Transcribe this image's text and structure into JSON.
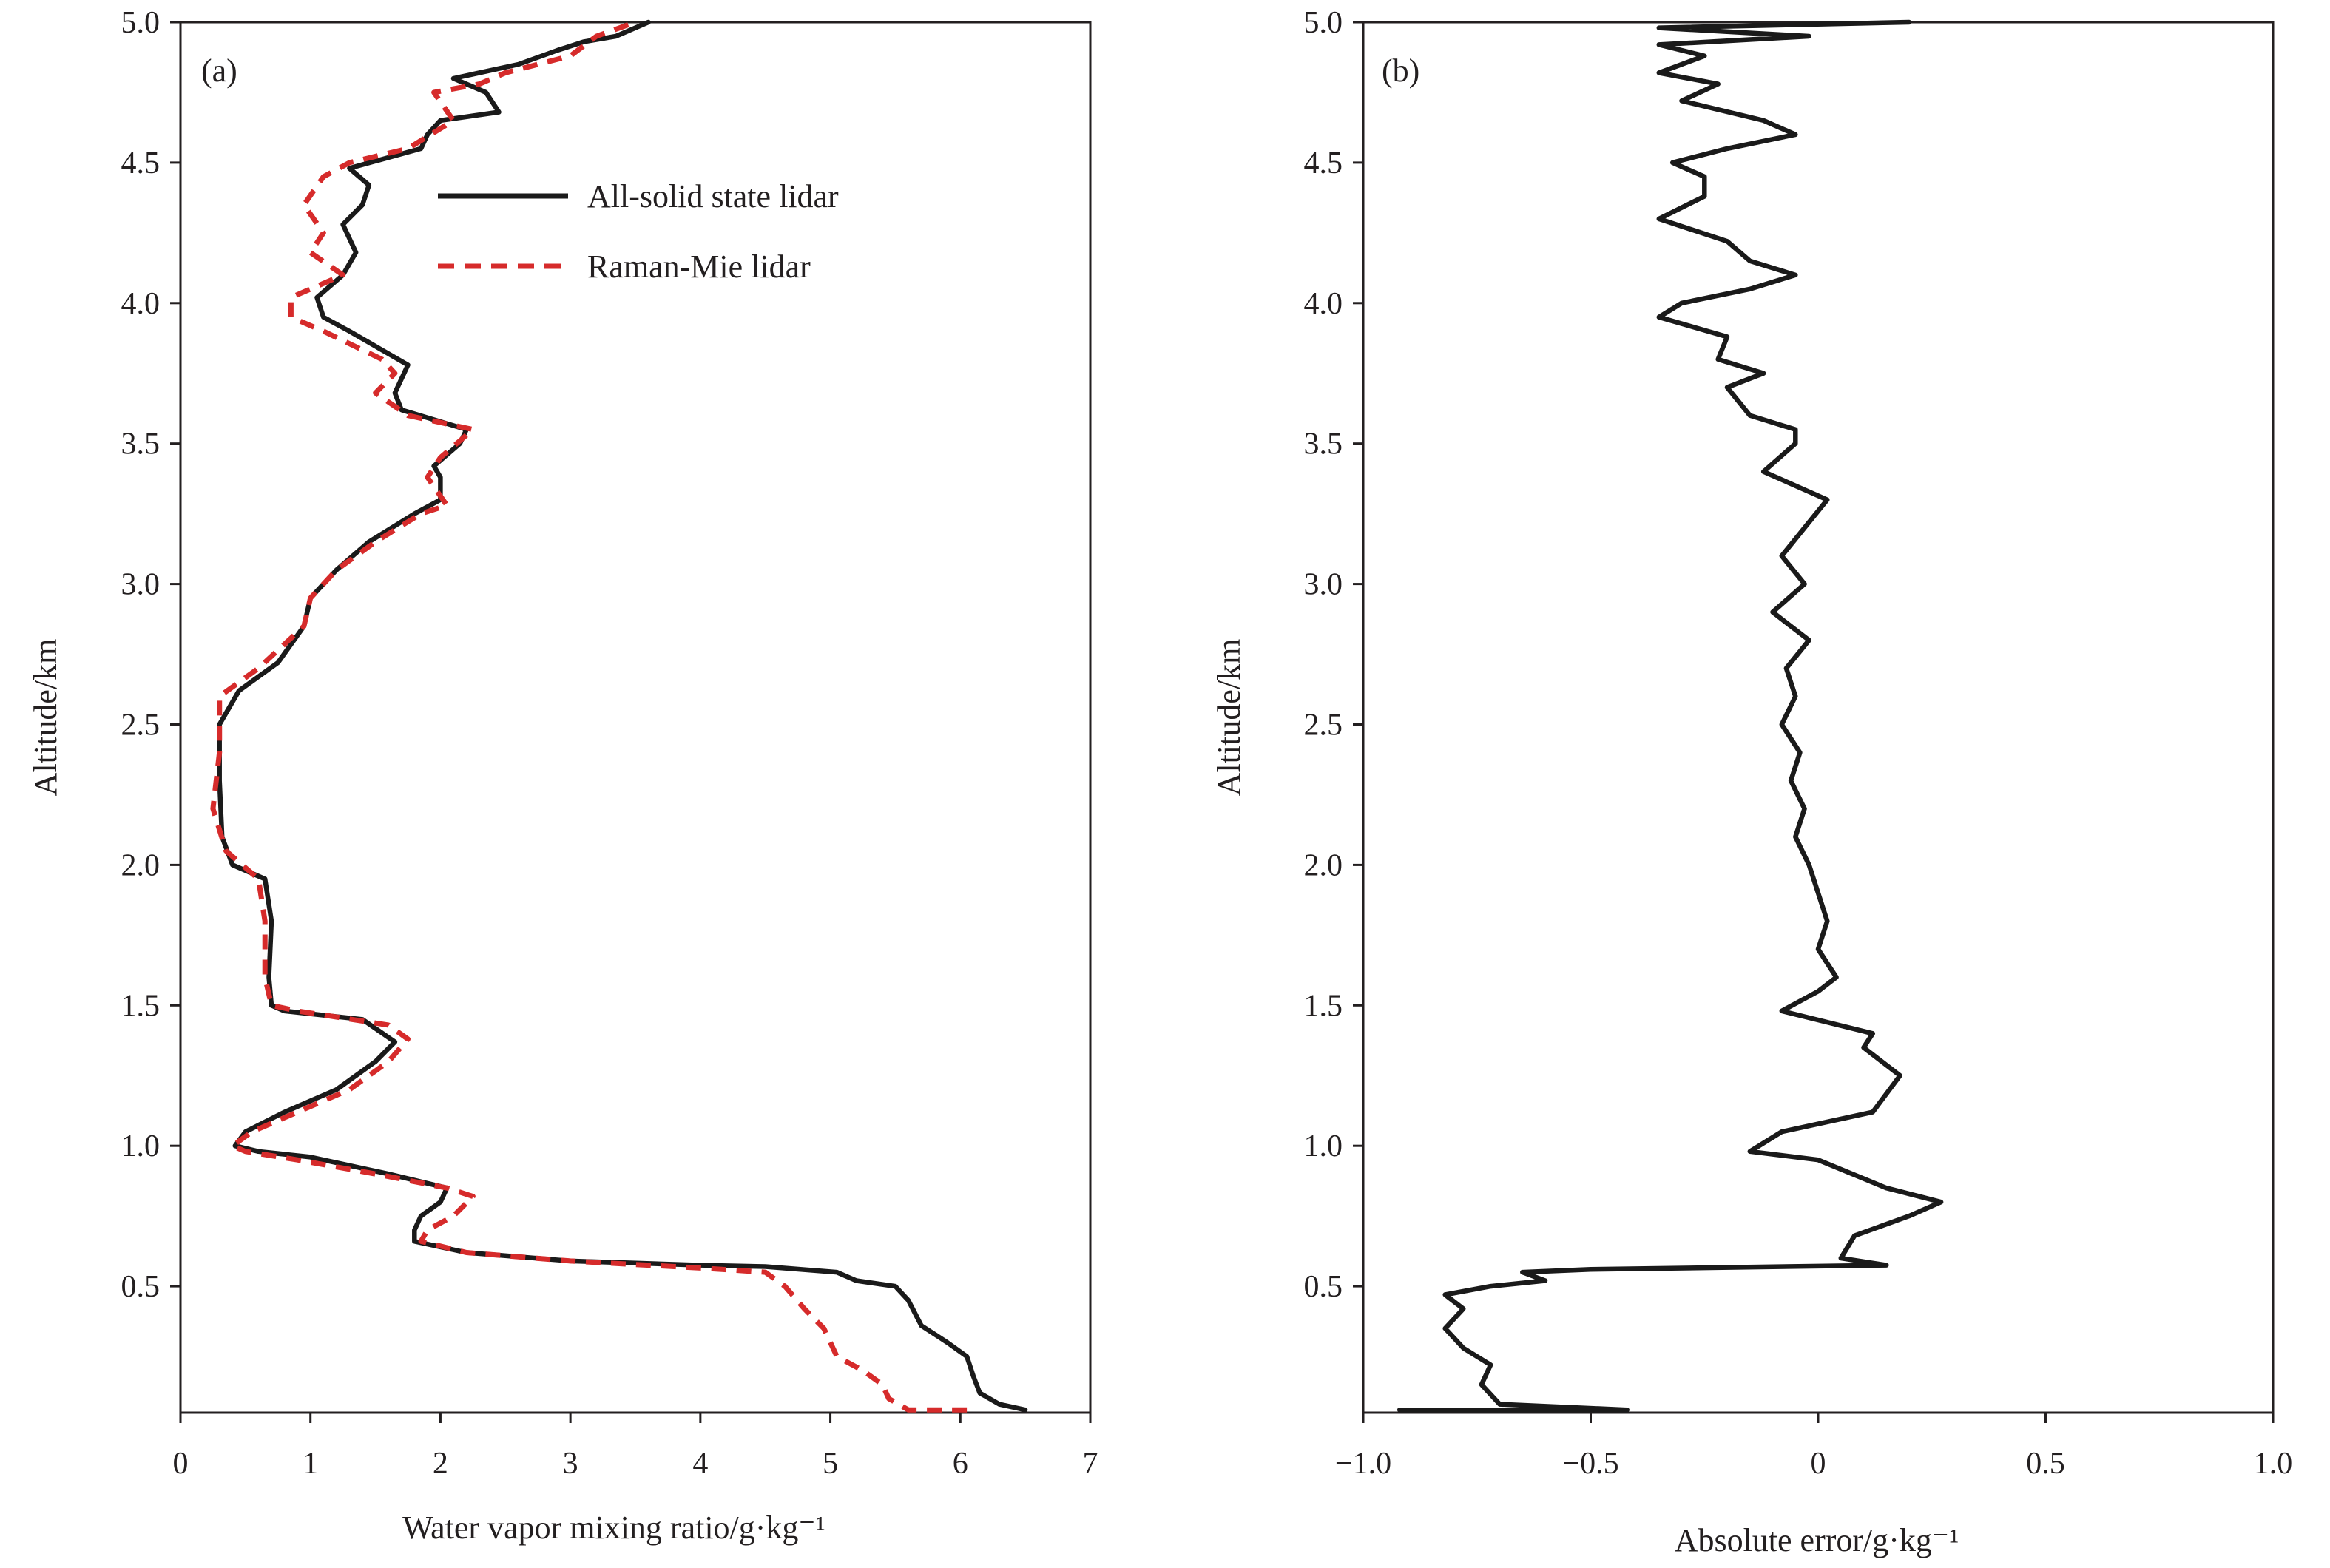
{
  "chart_data": [
    {
      "type": "line",
      "panel_label": "(a)",
      "xlabel": "Water vapor mixing ratio/g·kg⁻¹",
      "ylabel": "Altitude/km",
      "xlim": [
        0,
        7
      ],
      "ylim": [
        0.05,
        5.0
      ],
      "xticks": [
        0,
        1,
        2,
        3,
        4,
        5,
        6,
        7
      ],
      "xtick_labels": [
        "0",
        "1",
        "2",
        "3",
        "4",
        "5",
        "6",
        "7"
      ],
      "yticks": [
        0.5,
        1.0,
        1.5,
        2.0,
        2.5,
        3.0,
        3.5,
        4.0,
        4.5,
        5.0
      ],
      "ytick_labels": [
        "0.5",
        "1.0",
        "1.5",
        "2.0",
        "2.5",
        "3.0",
        "3.5",
        "4.0",
        "4.5",
        "5.0"
      ],
      "grid": false,
      "legend_position": "upper-center",
      "series": [
        {
          "name": "All-solid state lidar",
          "color": "#1a1a1a",
          "style": "solid",
          "points": [
            [
              6.5,
              0.06
            ],
            [
              6.3,
              0.08
            ],
            [
              6.15,
              0.12
            ],
            [
              6.1,
              0.18
            ],
            [
              6.05,
              0.25
            ],
            [
              5.9,
              0.3
            ],
            [
              5.7,
              0.36
            ],
            [
              5.6,
              0.45
            ],
            [
              5.5,
              0.5
            ],
            [
              5.2,
              0.52
            ],
            [
              5.05,
              0.55
            ],
            [
              4.5,
              0.57
            ],
            [
              4.0,
              0.575
            ],
            [
              3.0,
              0.59
            ],
            [
              2.2,
              0.62
            ],
            [
              1.8,
              0.66
            ],
            [
              1.8,
              0.7
            ],
            [
              1.85,
              0.75
            ],
            [
              2.0,
              0.8
            ],
            [
              2.05,
              0.85
            ],
            [
              1.6,
              0.9
            ],
            [
              1.0,
              0.96
            ],
            [
              0.6,
              0.98
            ],
            [
              0.42,
              1.0
            ],
            [
              0.5,
              1.05
            ],
            [
              0.8,
              1.12
            ],
            [
              1.2,
              1.2
            ],
            [
              1.5,
              1.3
            ],
            [
              1.65,
              1.37
            ],
            [
              1.4,
              1.45
            ],
            [
              0.8,
              1.48
            ],
            [
              0.7,
              1.5
            ],
            [
              0.68,
              1.6
            ],
            [
              0.7,
              1.8
            ],
            [
              0.65,
              1.95
            ],
            [
              0.4,
              2.0
            ],
            [
              0.32,
              2.1
            ],
            [
              0.3,
              2.3
            ],
            [
              0.3,
              2.5
            ],
            [
              0.45,
              2.62
            ],
            [
              0.75,
              2.72
            ],
            [
              0.95,
              2.85
            ],
            [
              1.0,
              2.95
            ],
            [
              1.2,
              3.05
            ],
            [
              1.45,
              3.15
            ],
            [
              1.8,
              3.25
            ],
            [
              2.0,
              3.3
            ],
            [
              2.0,
              3.38
            ],
            [
              1.95,
              3.42
            ],
            [
              2.15,
              3.5
            ],
            [
              2.2,
              3.55
            ],
            [
              1.7,
              3.62
            ],
            [
              1.65,
              3.68
            ],
            [
              1.75,
              3.78
            ],
            [
              1.6,
              3.82
            ],
            [
              1.3,
              3.9
            ],
            [
              1.1,
              3.95
            ],
            [
              1.05,
              4.02
            ],
            [
              1.25,
              4.1
            ],
            [
              1.35,
              4.18
            ],
            [
              1.25,
              4.28
            ],
            [
              1.4,
              4.35
            ],
            [
              1.45,
              4.42
            ],
            [
              1.3,
              4.48
            ],
            [
              1.85,
              4.55
            ],
            [
              1.9,
              4.6
            ],
            [
              2.0,
              4.65
            ],
            [
              2.45,
              4.68
            ],
            [
              2.35,
              4.75
            ],
            [
              2.1,
              4.8
            ],
            [
              2.6,
              4.85
            ],
            [
              2.9,
              4.9
            ],
            [
              3.1,
              4.93
            ],
            [
              3.35,
              4.95
            ],
            [
              3.6,
              5.0
            ]
          ]
        },
        {
          "name": "Raman-Mie lidar",
          "color": "#d62b2b",
          "style": "dashed",
          "points": [
            [
              6.05,
              0.06
            ],
            [
              5.6,
              0.06
            ],
            [
              5.45,
              0.1
            ],
            [
              5.4,
              0.15
            ],
            [
              5.25,
              0.2
            ],
            [
              5.05,
              0.25
            ],
            [
              5.0,
              0.3
            ],
            [
              4.95,
              0.35
            ],
            [
              4.8,
              0.42
            ],
            [
              4.65,
              0.5
            ],
            [
              4.5,
              0.55
            ],
            [
              4.0,
              0.565
            ],
            [
              3.0,
              0.59
            ],
            [
              2.2,
              0.62
            ],
            [
              1.85,
              0.66
            ],
            [
              1.9,
              0.7
            ],
            [
              2.1,
              0.75
            ],
            [
              2.25,
              0.82
            ],
            [
              2.05,
              0.85
            ],
            [
              1.5,
              0.9
            ],
            [
              0.9,
              0.95
            ],
            [
              0.5,
              0.98
            ],
            [
              0.4,
              1.0
            ],
            [
              0.55,
              1.05
            ],
            [
              0.9,
              1.12
            ],
            [
              1.3,
              1.2
            ],
            [
              1.6,
              1.3
            ],
            [
              1.75,
              1.38
            ],
            [
              1.6,
              1.43
            ],
            [
              0.9,
              1.48
            ],
            [
              0.7,
              1.5
            ],
            [
              0.65,
              1.6
            ],
            [
              0.65,
              1.8
            ],
            [
              0.6,
              1.95
            ],
            [
              0.35,
              2.05
            ],
            [
              0.25,
              2.2
            ],
            [
              0.3,
              2.4
            ],
            [
              0.3,
              2.6
            ],
            [
              0.6,
              2.7
            ],
            [
              0.95,
              2.85
            ],
            [
              1.0,
              2.95
            ],
            [
              1.2,
              3.05
            ],
            [
              1.5,
              3.15
            ],
            [
              1.85,
              3.25
            ],
            [
              2.05,
              3.28
            ],
            [
              1.9,
              3.38
            ],
            [
              2.0,
              3.45
            ],
            [
              2.25,
              3.55
            ],
            [
              1.75,
              3.6
            ],
            [
              1.5,
              3.68
            ],
            [
              1.65,
              3.75
            ],
            [
              1.55,
              3.8
            ],
            [
              1.1,
              3.9
            ],
            [
              0.85,
              3.95
            ],
            [
              0.85,
              4.02
            ],
            [
              1.0,
              4.05
            ],
            [
              1.25,
              4.1
            ],
            [
              1.0,
              4.18
            ],
            [
              1.1,
              4.25
            ],
            [
              0.95,
              4.35
            ],
            [
              1.1,
              4.45
            ],
            [
              1.3,
              4.5
            ],
            [
              1.75,
              4.55
            ],
            [
              2.1,
              4.65
            ],
            [
              1.95,
              4.75
            ],
            [
              2.3,
              4.78
            ],
            [
              2.5,
              4.82
            ],
            [
              3.0,
              4.88
            ],
            [
              3.2,
              4.95
            ],
            [
              3.5,
              5.0
            ]
          ]
        }
      ]
    },
    {
      "type": "line",
      "panel_label": "(b)",
      "xlabel": "Absolute error/g·kg⁻¹",
      "ylabel": "Altitude/km",
      "xlim": [
        -1.0,
        1.0
      ],
      "ylim": [
        0.05,
        5.0
      ],
      "xticks": [
        -1.0,
        -0.5,
        0,
        0.5,
        1.0
      ],
      "xtick_labels": [
        "−1.0",
        "−0.5",
        "0",
        "0.5",
        "1.0"
      ],
      "yticks": [
        0.5,
        1.0,
        1.5,
        2.0,
        2.5,
        3.0,
        3.5,
        4.0,
        4.5,
        5.0
      ],
      "ytick_labels": [
        "0.5",
        "1.0",
        "1.5",
        "2.0",
        "2.5",
        "3.0",
        "3.5",
        "4.0",
        "4.5",
        "5.0"
      ],
      "grid": false,
      "series": [
        {
          "color": "#1a1a1a",
          "style": "solid",
          "points": [
            [
              -0.92,
              0.06
            ],
            [
              -0.42,
              0.06
            ],
            [
              -0.7,
              0.08
            ],
            [
              -0.74,
              0.15
            ],
            [
              -0.72,
              0.22
            ],
            [
              -0.78,
              0.28
            ],
            [
              -0.82,
              0.35
            ],
            [
              -0.78,
              0.42
            ],
            [
              -0.82,
              0.47
            ],
            [
              -0.72,
              0.5
            ],
            [
              -0.6,
              0.52
            ],
            [
              -0.65,
              0.55
            ],
            [
              -0.5,
              0.56
            ],
            [
              0.15,
              0.575
            ],
            [
              0.05,
              0.6
            ],
            [
              0.08,
              0.68
            ],
            [
              0.2,
              0.75
            ],
            [
              0.27,
              0.8
            ],
            [
              0.15,
              0.85
            ],
            [
              0.0,
              0.95
            ],
            [
              -0.15,
              0.98
            ],
            [
              -0.08,
              1.05
            ],
            [
              0.12,
              1.12
            ],
            [
              0.18,
              1.25
            ],
            [
              0.1,
              1.35
            ],
            [
              0.12,
              1.4
            ],
            [
              -0.08,
              1.48
            ],
            [
              0.0,
              1.55
            ],
            [
              0.04,
              1.6
            ],
            [
              0.0,
              1.7
            ],
            [
              0.02,
              1.8
            ],
            [
              0.0,
              1.9
            ],
            [
              -0.02,
              2.0
            ],
            [
              -0.05,
              2.1
            ],
            [
              -0.03,
              2.2
            ],
            [
              -0.06,
              2.3
            ],
            [
              -0.04,
              2.4
            ],
            [
              -0.08,
              2.5
            ],
            [
              -0.05,
              2.6
            ],
            [
              -0.07,
              2.7
            ],
            [
              -0.02,
              2.8
            ],
            [
              -0.1,
              2.9
            ],
            [
              -0.03,
              3.0
            ],
            [
              -0.08,
              3.1
            ],
            [
              -0.03,
              3.2
            ],
            [
              0.02,
              3.3
            ],
            [
              -0.12,
              3.4
            ],
            [
              -0.05,
              3.5
            ],
            [
              -0.05,
              3.55
            ],
            [
              -0.15,
              3.6
            ],
            [
              -0.2,
              3.7
            ],
            [
              -0.12,
              3.75
            ],
            [
              -0.22,
              3.8
            ],
            [
              -0.2,
              3.88
            ],
            [
              -0.35,
              3.95
            ],
            [
              -0.3,
              4.0
            ],
            [
              -0.15,
              4.05
            ],
            [
              -0.05,
              4.1
            ],
            [
              -0.15,
              4.15
            ],
            [
              -0.2,
              4.22
            ],
            [
              -0.35,
              4.3
            ],
            [
              -0.25,
              4.38
            ],
            [
              -0.25,
              4.45
            ],
            [
              -0.32,
              4.5
            ],
            [
              -0.2,
              4.55
            ],
            [
              -0.05,
              4.6
            ],
            [
              -0.12,
              4.65
            ],
            [
              -0.3,
              4.72
            ],
            [
              -0.22,
              4.78
            ],
            [
              -0.35,
              4.82
            ],
            [
              -0.25,
              4.88
            ],
            [
              -0.35,
              4.92
            ],
            [
              -0.02,
              4.95
            ],
            [
              -0.35,
              4.98
            ],
            [
              0.2,
              5.0
            ]
          ]
        }
      ]
    }
  ],
  "legend": {
    "solid_label": "All-solid state lidar",
    "dashed_label": "Raman-Mie lidar"
  }
}
